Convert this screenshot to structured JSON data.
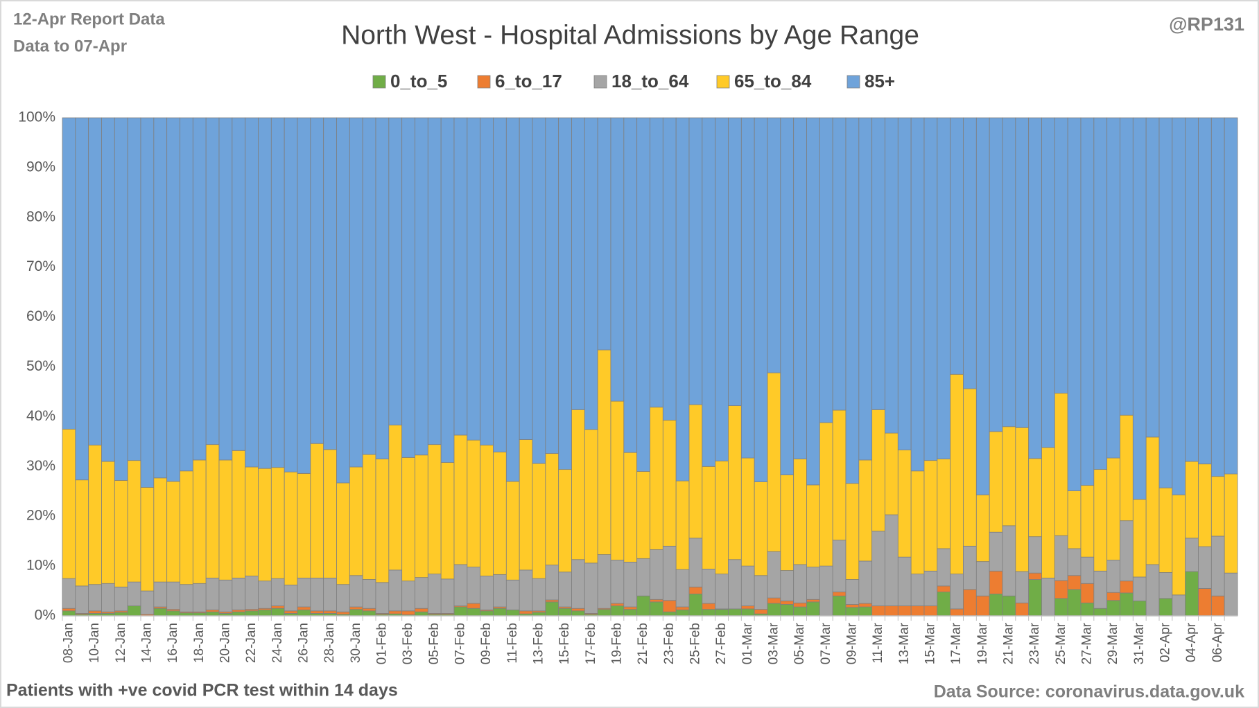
{
  "chart_data": {
    "type": "stacked_bar",
    "title": "North West - Hospital Admissions by Age Range",
    "annotations": [
      "12-Apr Report Data",
      "Data to 07-Apr",
      "@RP131",
      "Patients with  +ve covid PCR test within 14 days",
      "Data Source: coronavirus.data.gov.uk"
    ],
    "categories": [
      "08-Jan",
      null,
      "10-Jan",
      null,
      "12-Jan",
      null,
      "14-Jan",
      null,
      "16-Jan",
      null,
      "18-Jan",
      null,
      "20-Jan",
      null,
      "22-Jan",
      null,
      "24-Jan",
      null,
      "26-Jan",
      null,
      "28-Jan",
      null,
      "30-Jan",
      null,
      "01-Feb",
      null,
      "03-Feb",
      null,
      "05-Feb",
      null,
      "07-Feb",
      null,
      "09-Feb",
      null,
      "11-Feb",
      null,
      "13-Feb",
      null,
      "15-Feb",
      null,
      "17-Feb",
      null,
      "19-Feb",
      null,
      "21-Feb",
      null,
      "23-Feb",
      null,
      "25-Feb",
      null,
      "27-Feb",
      null,
      "01-Mar",
      null,
      "03-Mar",
      null,
      "05-Mar",
      null,
      "07-Mar",
      null,
      "09-Mar",
      null,
      "11-Mar",
      null,
      "13-Mar",
      null,
      "15-Mar",
      null,
      "17-Mar",
      null,
      "19-Mar",
      null,
      "21-Mar",
      null,
      "23-Mar",
      null,
      "25-Mar",
      null,
      "27-Mar",
      null,
      "29-Mar",
      null,
      "31-Mar",
      null,
      "02-Apr",
      null,
      "04-Apr",
      null,
      "06-Apr",
      null
    ],
    "series": [
      {
        "name": "0_to_5",
        "color": "#70ad47",
        "values": [
          1,
          0.3,
          0.5,
          0.5,
          0.7,
          2,
          0,
          1.5,
          1,
          0.6,
          0.6,
          0.8,
          0.5,
          0.8,
          1,
          1.2,
          1.5,
          0.5,
          1.2,
          0.5,
          0.5,
          0.3,
          1.3,
          1,
          0.3,
          0.4,
          0.2,
          0.8,
          0.3,
          0.3,
          1.8,
          1.5,
          1,
          1.5,
          1.2,
          0.4,
          0.7,
          2.8,
          1.5,
          1,
          0.3,
          1.3,
          2,
          1.3,
          4,
          2.8,
          0.8,
          1.2,
          4.4,
          1.3,
          1.3,
          1.4,
          1.4,
          0.4,
          2.5,
          2.3,
          1.8,
          2.8,
          0,
          4,
          1.7,
          1.8,
          0,
          0,
          0,
          0,
          0,
          4.8,
          0,
          0,
          0,
          4.4,
          4,
          0,
          7.3,
          0,
          3.5,
          5.3,
          2.6,
          1.5,
          3.1,
          4.6,
          3,
          0,
          3.5,
          0,
          8.9,
          0,
          0,
          0
        ]
      },
      {
        "name": "6_to_17",
        "color": "#ed7d31",
        "values": [
          0.5,
          0.2,
          0.5,
          0.3,
          0.3,
          0,
          0.3,
          0.3,
          0.3,
          0.2,
          0.2,
          0.4,
          0.3,
          0.4,
          0.3,
          0.3,
          0.5,
          0.5,
          0.6,
          0.5,
          0.5,
          0.5,
          0.5,
          0.5,
          0.2,
          0.6,
          0.8,
          0.7,
          0.2,
          0.2,
          0.2,
          1,
          0.2,
          0.3,
          0,
          0.6,
          0.3,
          0.4,
          0.3,
          0.5,
          0.2,
          0.2,
          0.5,
          0.5,
          0,
          0.5,
          2.3,
          0.6,
          1.4,
          1.2,
          0.1,
          0,
          0.6,
          0.9,
          1.1,
          0.7,
          0.8,
          0.5,
          0,
          0.8,
          0.6,
          0.7,
          2,
          2,
          2,
          2,
          2,
          1.2,
          1.4,
          5.3,
          4,
          4.6,
          0,
          2.6,
          1.3,
          0,
          3.6,
          2.8,
          3.9,
          0,
          1.6,
          2.4,
          0,
          0,
          0,
          0,
          0,
          5.5,
          4,
          0
        ]
      },
      {
        "name": "18_to_64",
        "color": "#a5a5a5",
        "values": [
          6,
          5.5,
          5.3,
          5.7,
          4.8,
          4.8,
          4.7,
          5,
          5.5,
          5.5,
          5.7,
          6.4,
          6.4,
          6.4,
          6.7,
          5.5,
          5.5,
          5.2,
          5.8,
          6.6,
          6.6,
          5.5,
          6.3,
          5.8,
          6.2,
          8.2,
          6,
          6.2,
          7.9,
          6.9,
          8.3,
          7.3,
          6.8,
          6.5,
          6,
          8.2,
          6.5,
          7,
          7,
          9.8,
          10.1,
          10.8,
          8.7,
          9,
          7.5,
          10,
          10.9,
          7.5,
          9.8,
          6.9,
          7,
          9.9,
          8,
          6.8,
          9.3,
          6.1,
          7.7,
          6.5,
          10,
          10.4,
          5,
          8.5,
          15,
          18.3,
          9.8,
          6.4,
          7,
          7.5,
          7,
          8.7,
          6.9,
          7.8,
          14.1,
          6.3,
          7.3,
          7.6,
          9,
          5.4,
          5.3,
          7.5,
          6.5,
          12.1,
          4.8,
          10.3,
          5.2,
          4.2,
          6.7,
          8.4,
          12,
          8.6
        ]
      },
      {
        "name": "65_to_84",
        "color": "#ffca28",
        "values": [
          30,
          21.3,
          28,
          24.5,
          21.4,
          24.4,
          20.8,
          20.9,
          20.2,
          22.8,
          24.8,
          26.8,
          24.1,
          25.6,
          21.9,
          22.6,
          22.3,
          22.7,
          21,
          27,
          25.8,
          20.4,
          21.8,
          25.1,
          24.8,
          29.1,
          24.8,
          24.6,
          26,
          23.4,
          26,
          25.5,
          26.3,
          24.6,
          19.8,
          26.2,
          23.1,
          22.4,
          20.6,
          30.1,
          26.8,
          41.1,
          31.9,
          22,
          17.5,
          28.6,
          25.3,
          17.8,
          26.8,
          20.6,
          22.7,
          30.9,
          21.7,
          18.8,
          35.9,
          19.2,
          21.2,
          16.5,
          28.8,
          26.1,
          19.3,
          20.3,
          24.4,
          16.4,
          21.5,
          20.7,
          22.2,
          18,
          40.1,
          31.6,
          13.4,
          20.2,
          19.9,
          28.9,
          15.7,
          26.2,
          28.6,
          11.6,
          14.4,
          20.4,
          20.5,
          21.2,
          15.6,
          25.6,
          17,
          20.1,
          15.4,
          16.6,
          12,
          19.9
        ]
      },
      {
        "name": "85+",
        "color": "#6fa3da",
        "values": [
          62.5,
          72.7,
          65.7,
          69,
          72.8,
          68.8,
          74.2,
          72.3,
          73,
          70.9,
          68.7,
          65.6,
          68.7,
          66.8,
          70.1,
          70.4,
          70.2,
          71.1,
          71.4,
          65.4,
          66.6,
          73.3,
          70.1,
          67.6,
          68.5,
          61.7,
          68.2,
          67.7,
          65.6,
          69.2,
          63.7,
          64.7,
          65.7,
          67.1,
          73,
          64.6,
          69.4,
          67.4,
          70.6,
          58.6,
          62.6,
          46.6,
          56.9,
          67.2,
          71,
          58.1,
          60.7,
          72.9,
          57.6,
          70,
          68.9,
          57.8,
          68.3,
          73.1,
          51.2,
          71.7,
          68.5,
          73.7,
          61.2,
          58.7,
          73.4,
          68.7,
          58.6,
          63.3,
          66.7,
          70.9,
          68.8,
          68.5,
          51.5,
          54.4,
          75.7,
          63,
          62,
          62.2,
          68.4,
          66.2,
          55.3,
          74.9,
          73.8,
          70.6,
          68.3,
          59.7,
          76.6,
          64.1,
          74.3,
          75.7,
          69,
          69.5,
          72,
          71.5
        ]
      }
    ],
    "ylim": [
      0,
      100
    ],
    "yticks": [
      {
        "value": 0,
        "label": "0%"
      },
      {
        "value": 10,
        "label": "10%"
      },
      {
        "value": 20,
        "label": "20%"
      },
      {
        "value": 30,
        "label": "30%"
      },
      {
        "value": 40,
        "label": "40%"
      },
      {
        "value": 50,
        "label": "50%"
      },
      {
        "value": 60,
        "label": "60%"
      },
      {
        "value": 70,
        "label": "70%"
      },
      {
        "value": 80,
        "label": "80%"
      },
      {
        "value": 90,
        "label": "90%"
      },
      {
        "value": 100,
        "label": "100%"
      }
    ],
    "grid": false,
    "legend": "top"
  }
}
